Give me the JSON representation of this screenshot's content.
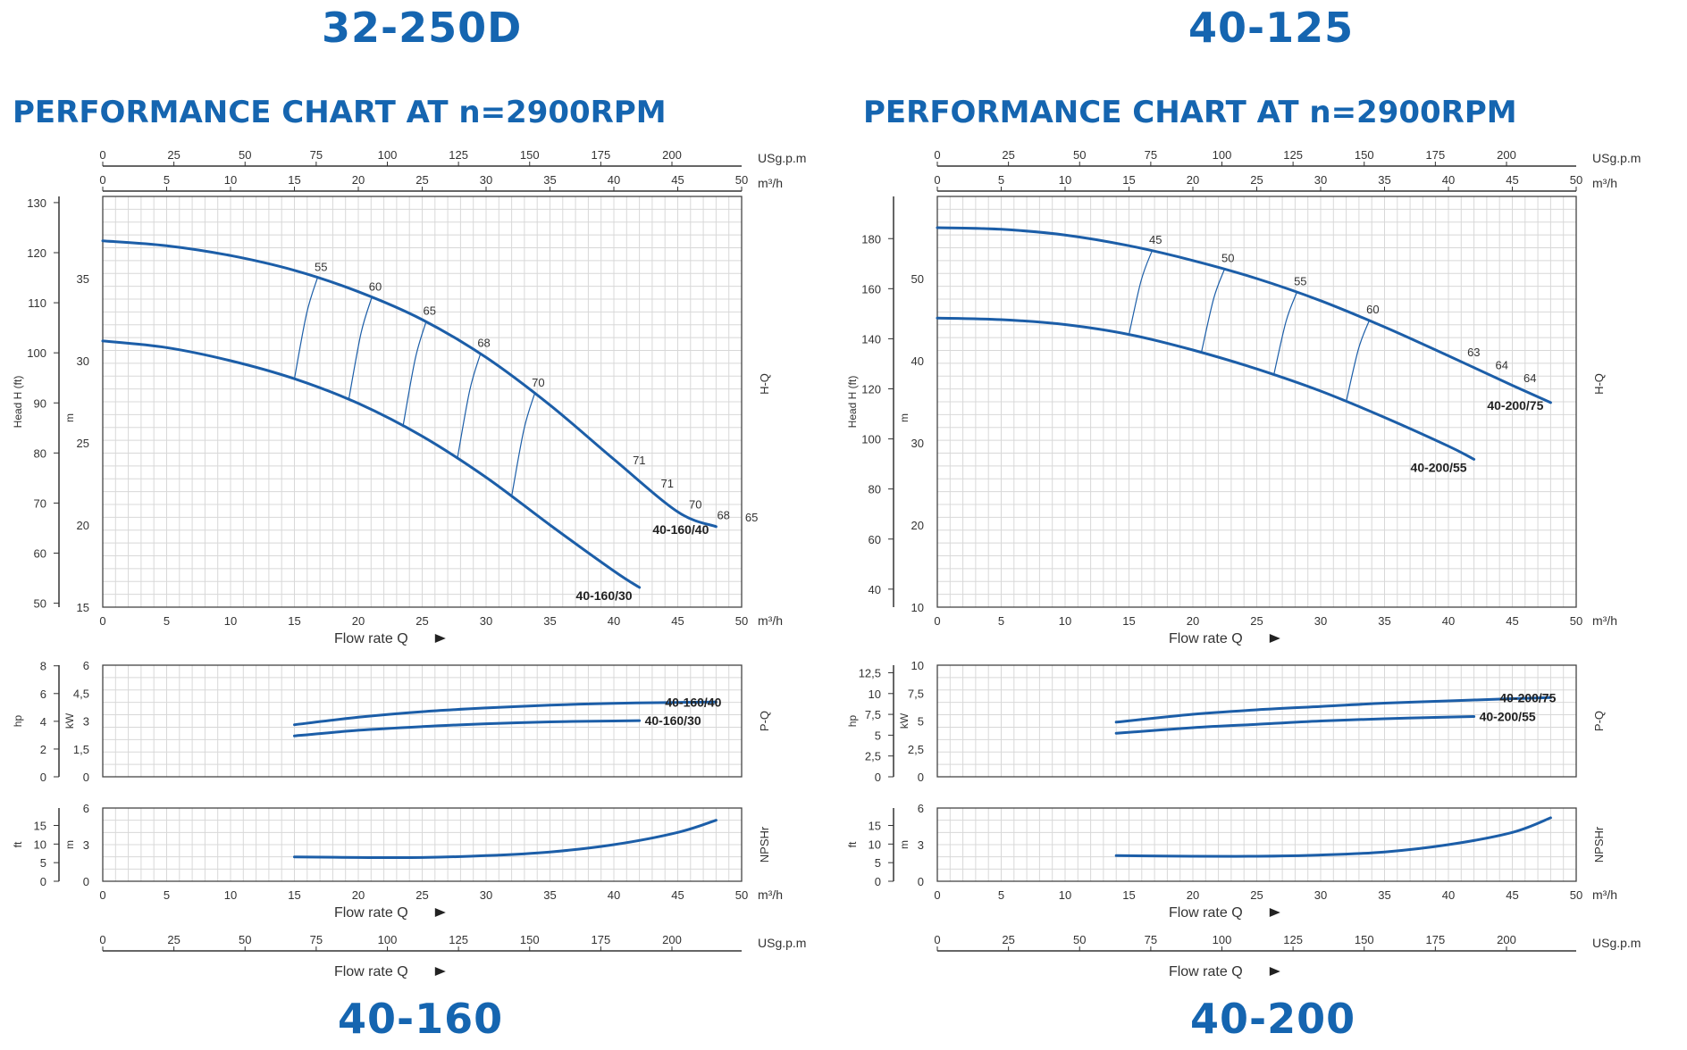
{
  "models": {
    "top_left": "32-250D",
    "top_right": "40-125",
    "bottom_left": "40-160",
    "bottom_right": "40-200"
  },
  "titles": {
    "left": "PERFORMANCE CHART AT n=2900RPM",
    "right": "PERFORMANCE CHART AT n=2900RPM"
  },
  "colors": {
    "brand": "#1565b0",
    "curve": "#1c5ea8",
    "grid": "#d8d8d8"
  },
  "chart_data": [
    {
      "type": "line",
      "panel": "left",
      "units": {
        "usgpm": "USg.p.m",
        "m3h": "m³/h",
        "head_ft": "Head H (ft)",
        "head_m": "m",
        "power_hp": "hp",
        "power_kw": "kW",
        "npsh_ft": "ft",
        "npsh_m": "m"
      },
      "xlabel": "Flow rate Q",
      "x_m3h": {
        "range": [
          0,
          50
        ],
        "ticks": [
          "0",
          "5",
          "10",
          "15",
          "20",
          "25",
          "30",
          "35",
          "40",
          "45",
          "50"
        ]
      },
      "x_usgpm": {
        "range": [
          0,
          220
        ],
        "ticks": [
          "0",
          "25",
          "50",
          "75",
          "100",
          "125",
          "150",
          "175",
          "200"
        ]
      },
      "hq": {
        "label": "H-Q",
        "ylim_m": [
          15,
          40
        ],
        "ticks_m": [
          "15",
          "20",
          "25",
          "30",
          "35"
        ],
        "ticks_ft": [
          "50",
          "60",
          "70",
          "80",
          "90",
          "100",
          "110",
          "120",
          "130"
        ],
        "series": [
          {
            "name": "40-160/40",
            "x": [
              0,
              5,
              10,
              15,
              20,
              25,
              30,
              35,
              40,
              45,
              48
            ],
            "y": [
              37.3,
              37.0,
              36.4,
              35.5,
              34.2,
              32.5,
              30.2,
              27.3,
              24.0,
              20.8,
              19.9
            ]
          },
          {
            "name": "40-160/30",
            "x": [
              0,
              5,
              10,
              15,
              20,
              25,
              30,
              35,
              40,
              42
            ],
            "y": [
              31.2,
              30.8,
              30.0,
              28.9,
              27.4,
              25.4,
              22.9,
              20.0,
              17.2,
              16.2
            ]
          }
        ],
        "efficiency_labels": [
          "55",
          "60",
          "65",
          "68",
          "70",
          "71",
          "71",
          "70",
          "68",
          "65"
        ]
      },
      "pq": {
        "label": "P-Q",
        "ylim_kw": [
          0,
          6
        ],
        "ticks_kw": [
          "0",
          "1,5",
          "3",
          "4,5",
          "6"
        ],
        "ticks_hp": [
          "0",
          "2",
          "4",
          "6",
          "8"
        ],
        "series": [
          {
            "name": "40-160/40",
            "x": [
              15,
              20,
              25,
              30,
              35,
              40,
              45,
              48
            ],
            "y": [
              2.8,
              3.2,
              3.5,
              3.7,
              3.85,
              3.95,
              4.0,
              4.02
            ]
          },
          {
            "name": "40-160/30",
            "x": [
              15,
              20,
              25,
              30,
              35,
              40,
              42
            ],
            "y": [
              2.2,
              2.5,
              2.7,
              2.85,
              2.95,
              3.0,
              3.02
            ]
          }
        ]
      },
      "npsh": {
        "label": "NPSHr",
        "ylim_m": [
          0,
          6
        ],
        "ticks_m": [
          "0",
          "3",
          "6"
        ],
        "ticks_ft": [
          "0",
          "5",
          "10",
          "15"
        ],
        "series": [
          {
            "name": "NPSHr",
            "x": [
              15,
              20,
              25,
              30,
              35,
              40,
              45,
              48
            ],
            "y": [
              2.0,
              1.95,
              1.95,
              2.1,
              2.4,
              3.0,
              4.0,
              5.0
            ]
          }
        ]
      }
    },
    {
      "type": "line",
      "panel": "right",
      "units": {
        "usgpm": "USg.p.m",
        "m3h": "m³/h",
        "head_ft": "Head H (ft)",
        "head_m": "m",
        "power_hp": "hp",
        "power_kw": "kW",
        "npsh_ft": "ft",
        "npsh_m": "m"
      },
      "xlabel": "Flow rate Q",
      "x_m3h": {
        "range": [
          0,
          50
        ],
        "ticks": [
          "0",
          "5",
          "10",
          "15",
          "20",
          "25",
          "30",
          "35",
          "40",
          "45",
          "50"
        ]
      },
      "x_usgpm": {
        "range": [
          0,
          220
        ],
        "ticks": [
          "0",
          "25",
          "50",
          "75",
          "100",
          "125",
          "150",
          "175",
          "200"
        ]
      },
      "hq": {
        "label": "H-Q",
        "ylim_m": [
          10,
          60
        ],
        "ticks_m": [
          "10",
          "20",
          "30",
          "40",
          "50"
        ],
        "ticks_ft": [
          "40",
          "60",
          "80",
          "100",
          "120",
          "140",
          "160",
          "180"
        ],
        "series": [
          {
            "name": "40-200/75",
            "x": [
              0,
              5,
              10,
              15,
              20,
              25,
              30,
              35,
              40,
              45,
              48
            ],
            "y": [
              56.2,
              56.0,
              55.3,
              54.0,
              52.2,
              50.0,
              47.3,
              44.1,
              40.6,
              37.0,
              34.9
            ]
          },
          {
            "name": "40-200/55",
            "x": [
              0,
              5,
              10,
              15,
              20,
              25,
              30,
              35,
              40,
              42
            ],
            "y": [
              45.2,
              45.0,
              44.4,
              43.2,
              41.3,
              39.0,
              36.3,
              33.1,
              29.6,
              28.0
            ]
          }
        ],
        "efficiency_labels": [
          "45",
          "50",
          "55",
          "60",
          "63",
          "64",
          "64"
        ]
      },
      "pq": {
        "label": "P-Q",
        "ylim_kw": [
          0,
          10
        ],
        "ticks_kw": [
          "0",
          "2,5",
          "5",
          "7,5",
          "10"
        ],
        "ticks_hp": [
          "0",
          "2,5",
          "5",
          "7,5",
          "10",
          "12,5"
        ],
        "series": [
          {
            "name": "40-200/75",
            "x": [
              14,
              20,
              25,
              30,
              35,
              40,
              45,
              48
            ],
            "y": [
              4.9,
              5.6,
              6.0,
              6.3,
              6.6,
              6.8,
              7.0,
              7.1
            ]
          },
          {
            "name": "40-200/55",
            "x": [
              14,
              20,
              25,
              30,
              35,
              40,
              42
            ],
            "y": [
              3.9,
              4.4,
              4.7,
              5.0,
              5.2,
              5.35,
              5.4
            ]
          }
        ]
      },
      "npsh": {
        "label": "NPSHr",
        "ylim_m": [
          0,
          6
        ],
        "ticks_m": [
          "0",
          "3",
          "6"
        ],
        "ticks_ft": [
          "0",
          "5",
          "10",
          "15"
        ],
        "series": [
          {
            "name": "NPSHr",
            "x": [
              14,
              20,
              25,
              30,
              35,
              40,
              45,
              48
            ],
            "y": [
              2.1,
              2.05,
              2.05,
              2.15,
              2.4,
              3.0,
              4.0,
              5.2
            ]
          }
        ]
      }
    }
  ]
}
